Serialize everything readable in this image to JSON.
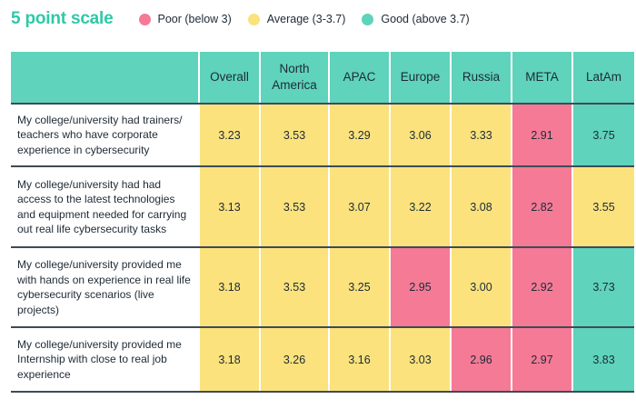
{
  "legend": {
    "title": "5 point scale",
    "items": [
      {
        "label": "Poor (below 3)",
        "color": "#f47a96"
      },
      {
        "label": "Average (3-3.7)",
        "color": "#fbe27d"
      },
      {
        "label": "Good (above 3.7)",
        "color": "#5fd3bb"
      }
    ]
  },
  "chart_data": {
    "type": "table",
    "columns": [
      "Overall",
      "North America",
      "APAC",
      "Europe",
      "Russia",
      "META",
      "LatAm"
    ],
    "rows": [
      {
        "label": "My college/university had trainers/ teachers who have corporate experience in cybersecurity",
        "values": [
          "3.23",
          "3.53",
          "3.29",
          "3.06",
          "3.33",
          "2.91",
          "3.75"
        ]
      },
      {
        "label": "My college/university had had access to the latest technologies and equipment needed for carrying out real life cybersecurity tasks",
        "values": [
          "3.13",
          "3.53",
          "3.07",
          "3.22",
          "3.08",
          "2.82",
          "3.55"
        ]
      },
      {
        "label": "My college/university provided me with hands on experience in real life cybersecurity scenarios (live projects)",
        "values": [
          "3.18",
          "3.53",
          "3.25",
          "2.95",
          "3.00",
          "2.92",
          "3.73"
        ]
      },
      {
        "label": "My college/university provided me Internship with close to real job experience",
        "values": [
          "3.18",
          "3.26",
          "3.16",
          "3.03",
          "2.96",
          "2.97",
          "3.83"
        ]
      }
    ],
    "thresholds": {
      "poor_below": 3,
      "good_above": 3.7
    },
    "colors": {
      "poor": "#f47a96",
      "average": "#fbe27d",
      "good": "#5fd3bb",
      "header": "#5fd3bb",
      "divider": "#3e4b57"
    }
  }
}
